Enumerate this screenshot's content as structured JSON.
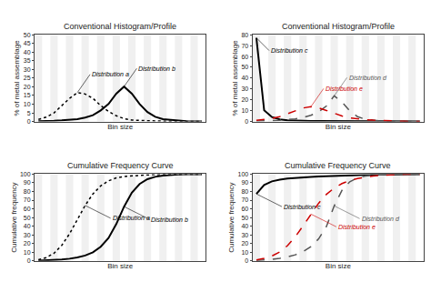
{
  "chart_data": [
    {
      "type": "line",
      "title": "Conventional Histogram/Profile",
      "x_label": "Bin size",
      "y_label": "% of metal assemblage",
      "x": [
        0,
        1,
        2,
        3,
        4,
        5,
        6,
        7,
        8,
        9,
        10,
        11,
        12,
        13,
        14,
        15,
        16,
        17,
        18,
        19,
        20,
        21
      ],
      "xlim": [
        -0.5,
        21.5
      ],
      "ylim": [
        0,
        50
      ],
      "yticks": [
        0,
        5,
        10,
        15,
        20,
        25,
        30,
        35,
        40,
        45,
        50
      ],
      "tick_labels": "y",
      "grid": false,
      "series": [
        {
          "name": "Distribution a",
          "color": "#000000",
          "line_style": "dotted",
          "values": [
            1.2523,
            2.5047,
            5.0094,
            9.1839,
            13.3584,
            16.698,
            15.8631,
            13.3584,
            9.1839,
            5.8443,
            3.3396,
            1.6698,
            0.8349,
            0.6262,
            0.4174,
            0.334,
            0.2087,
            0.1252,
            0.0835,
            0.0417,
            0.0417,
            0.0209
          ]
        },
        {
          "name": "Distribution b",
          "color": "#000000",
          "line_style": "solid",
          "values": [
            0.229,
            0.229,
            0.4581,
            0.6871,
            0.9162,
            1.3743,
            2.2904,
            3.6647,
            6.4132,
            10.0779,
            16.033,
            20.1557,
            16.033,
            10.0779,
            5.497,
            2.7485,
            1.3743,
            0.9162,
            0.4581,
            0.229,
            0.0916,
            0.0458
          ]
        }
      ]
    },
    {
      "type": "line",
      "title": "Conventional Histogram/Profile",
      "x_label": "Bin size",
      "y_label": "% of metal assemblage",
      "x": [
        0,
        1,
        2,
        3,
        4,
        5,
        6,
        7,
        8,
        9,
        10,
        11,
        12,
        13,
        14,
        15,
        16,
        17,
        18,
        19,
        20,
        21
      ],
      "xlim": [
        -0.5,
        21.5
      ],
      "ylim": [
        0,
        80
      ],
      "yticks": [
        0,
        10,
        20,
        30,
        40,
        50,
        60,
        70,
        80
      ],
      "tick_labels": "y",
      "grid": false,
      "series": [
        {
          "name": "Distribution c",
          "color": "#000000",
          "line_style": "solid",
          "values": [
            77.2002,
            10.2934,
            4.1173,
            2.0587,
            1.2352,
            0.8235,
            0.6176,
            0.5147,
            0.4117,
            0.4117,
            0.3603,
            0.3088,
            0.3088,
            0.2573,
            0.2059,
            0.2059,
            0.1544,
            0.1544,
            0.1029,
            0.1029,
            0.0823,
            0.0721
          ]
        },
        {
          "name": "Distribution d",
          "color": "#555555",
          "line_style": "dashed",
          "values": [
            0.4089,
            0.4089,
            0.8178,
            1.2267,
            1.6357,
            2.4535,
            3.6802,
            5.7248,
            8.9961,
            14.312,
            23.717,
            17.9922,
            9.8139,
            4.4981,
            2.0446,
            1.0223,
            0.6134,
            0.3271,
            0.1636,
            0.0818,
            0.0409,
            0.0204
          ]
        },
        {
          "name": "Distribution e",
          "color": "#cc0000",
          "line_style": "dashed",
          "values": [
            1.1357,
            1.7036,
            2.8393,
            4.5429,
            7.3822,
            10.2215,
            12.4929,
            13.6286,
            12.4929,
            10.2215,
            7.3822,
            5.1107,
            3.4072,
            2.2714,
            1.7036,
            1.2493,
            0.8518,
            0.5679,
            0.3975,
            0.2271,
            0.1136,
            0.0568
          ]
        }
      ]
    },
    {
      "type": "line",
      "title": "Cumulative Frequency Curve",
      "x_label": "Bin size",
      "y_label": "Cumulative frequency",
      "x": [
        0,
        1,
        2,
        3,
        4,
        5,
        6,
        7,
        8,
        9,
        10,
        11,
        12,
        13,
        14,
        15,
        16,
        17,
        18,
        19,
        20,
        21
      ],
      "xlim": [
        -0.5,
        21.5
      ],
      "ylim": [
        0,
        100
      ],
      "yticks": [
        0,
        10,
        20,
        30,
        40,
        50,
        60,
        70,
        80,
        90,
        100
      ],
      "tick_labels": "y",
      "grid": false,
      "series": [
        {
          "name": "Distribution a",
          "color": "#000000",
          "line_style": "dotted",
          "values": [
            1.2523,
            3.757,
            8.7664,
            17.9503,
            31.3087,
            48.0067,
            63.8698,
            77.2281,
            86.412,
            92.2563,
            95.5959,
            97.2657,
            98.1006,
            98.7268,
            99.1442,
            99.4782,
            99.6869,
            99.8122,
            99.8956,
            99.9374,
            99.9791,
            100
          ]
        },
        {
          "name": "Distribution b",
          "color": "#000000",
          "line_style": "solid",
          "values": [
            0.229,
            0.4581,
            0.9162,
            1.6033,
            2.5195,
            3.8937,
            6.1842,
            9.8488,
            16.262,
            26.3399,
            42.3729,
            62.5286,
            78.5616,
            88.6395,
            94.1365,
            96.885,
            98.2593,
            99.1754,
            99.6335,
            99.8626,
            99.9542,
            100
          ]
        }
      ]
    },
    {
      "type": "line",
      "title": "Cumulative Frequency Curve",
      "x_label": "Bin size",
      "y_label": "Cumulative frequency",
      "x": [
        0,
        1,
        2,
        3,
        4,
        5,
        6,
        7,
        8,
        9,
        10,
        11,
        12,
        13,
        14,
        15,
        16,
        17,
        18,
        19,
        20,
        21
      ],
      "xlim": [
        -0.5,
        21.5
      ],
      "ylim": [
        0,
        100
      ],
      "yticks": [
        0,
        10,
        20,
        30,
        40,
        50,
        60,
        70,
        80,
        90,
        100
      ],
      "tick_labels": "y",
      "grid": false,
      "series": [
        {
          "name": "Distribution c",
          "color": "#000000",
          "line_style": "solid",
          "values": [
            77.2002,
            87.4936,
            91.6109,
            93.6696,
            94.9048,
            95.7283,
            96.3459,
            96.8605,
            97.2723,
            97.684,
            98.0443,
            98.3531,
            98.6619,
            98.9192,
            99.1251,
            99.3309,
            99.4853,
            99.6397,
            99.7427,
            99.8456,
            99.9279,
            100
          ]
        },
        {
          "name": "Distribution d",
          "color": "#555555",
          "line_style": "dashed",
          "values": [
            0.4089,
            0.8178,
            1.6357,
            2.8624,
            4.4981,
            6.9515,
            10.6318,
            16.3566,
            25.3527,
            39.6647,
            63.3817,
            81.374,
            91.1879,
            95.686,
            97.7305,
            98.7528,
            99.3662,
            99.6933,
            99.8569,
            99.9387,
            99.9796,
            100
          ]
        },
        {
          "name": "Distribution e",
          "color": "#cc0000",
          "line_style": "dashed",
          "values": [
            1.1357,
            2.8393,
            5.6786,
            10.2215,
            17.6036,
            27.8251,
            40.318,
            53.9466,
            66.4395,
            76.661,
            84.0432,
            89.1539,
            92.561,
            94.8325,
            96.5361,
            97.7853,
            98.6371,
            99.205,
            99.6025,
            99.8296,
            99.9432,
            100
          ]
        }
      ]
    }
  ]
}
